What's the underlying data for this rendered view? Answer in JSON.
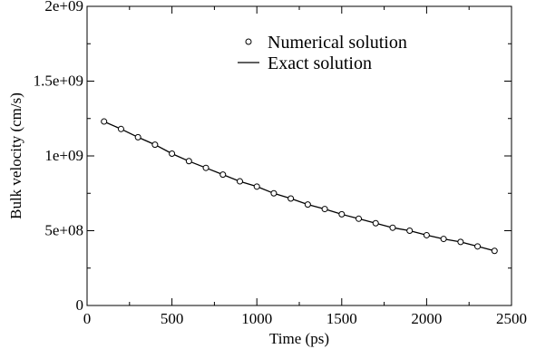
{
  "chart_data": {
    "type": "scatter",
    "title": "",
    "xlabel": "Time (ps)",
    "ylabel": "Bulk velocity (cm/s)",
    "xlim": [
      0,
      2500
    ],
    "ylim": [
      0,
      2000000000
    ],
    "x_ticks": [
      0,
      500,
      1000,
      1500,
      2000,
      2500
    ],
    "x_tick_labels": [
      "0",
      "500",
      "1000",
      "1500",
      "2000",
      "2500"
    ],
    "y_ticks": [
      0,
      500000000,
      1000000000,
      1500000000,
      2000000000
    ],
    "y_tick_labels": [
      "0",
      "5e+08",
      "1e+09",
      "1.5e+09",
      "2e+09"
    ],
    "grid": false,
    "legend_position": "top-right",
    "series": [
      {
        "name": "Numerical solution",
        "marker": "open-circle",
        "x": [
          100,
          200,
          300,
          400,
          500,
          600,
          700,
          800,
          900,
          1000,
          1100,
          1200,
          1300,
          1400,
          1500,
          1600,
          1700,
          1800,
          1900,
          2000,
          2100,
          2200,
          2300,
          2400
        ],
        "y": [
          1230000000,
          1180000000,
          1125000000,
          1075000000,
          1015000000,
          965000000,
          920000000,
          875000000,
          830000000,
          795000000,
          750000000,
          715000000,
          675000000,
          645000000,
          610000000,
          580000000,
          550000000,
          520000000,
          500000000,
          470000000,
          445000000,
          425000000,
          395000000,
          365000000
        ]
      },
      {
        "name": "Exact solution",
        "marker": "line",
        "x": [
          100,
          200,
          300,
          400,
          500,
          600,
          700,
          800,
          900,
          1000,
          1100,
          1200,
          1300,
          1400,
          1500,
          1600,
          1700,
          1800,
          1900,
          2000,
          2100,
          2200,
          2300,
          2400
        ],
        "y": [
          1230000000,
          1180000000,
          1125000000,
          1075000000,
          1015000000,
          965000000,
          920000000,
          875000000,
          830000000,
          795000000,
          750000000,
          715000000,
          675000000,
          645000000,
          610000000,
          580000000,
          550000000,
          520000000,
          500000000,
          470000000,
          445000000,
          425000000,
          395000000,
          365000000
        ]
      }
    ]
  }
}
